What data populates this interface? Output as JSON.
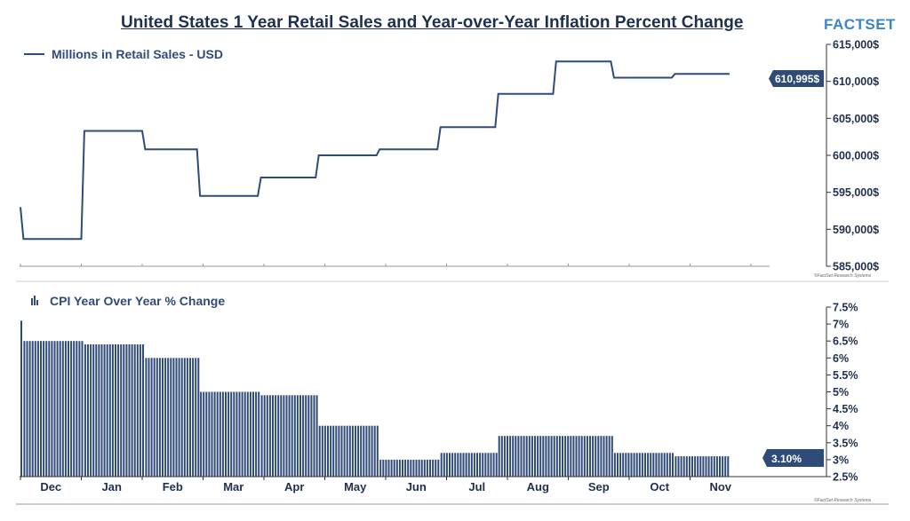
{
  "title": "United States 1 Year Retail Sales and Year-over-Year Inflation Percent Change",
  "brand": "FACTSET",
  "colors": {
    "series": "#2f4b78",
    "title": "#1f2f4e",
    "brand": "#3b86c8"
  },
  "copyright": "©FactSet Research Systems",
  "chart_data": [
    {
      "type": "line",
      "legend": "Millions in Retail Sales - USD",
      "legend_icon": "line-icon",
      "ylim": [
        585000,
        615000
      ],
      "y_ticks": [
        "585,000$",
        "590,000$",
        "595,000$",
        "600,000$",
        "605,000$",
        "610,000$",
        "615,000$"
      ],
      "last_value_label": "610,995$",
      "points": [
        {
          "x": 0.0,
          "y": 593000
        },
        {
          "x": 0.05,
          "y": 588700
        },
        {
          "x": 1.0,
          "y": 588700
        },
        {
          "x": 1.05,
          "y": 603300
        },
        {
          "x": 2.0,
          "y": 603300
        },
        {
          "x": 2.05,
          "y": 600800
        },
        {
          "x": 2.9,
          "y": 600800
        },
        {
          "x": 2.95,
          "y": 594500
        },
        {
          "x": 3.9,
          "y": 594500
        },
        {
          "x": 3.95,
          "y": 597000
        },
        {
          "x": 4.85,
          "y": 597000
        },
        {
          "x": 4.9,
          "y": 600000
        },
        {
          "x": 5.85,
          "y": 600000
        },
        {
          "x": 5.9,
          "y": 600800
        },
        {
          "x": 6.85,
          "y": 600800
        },
        {
          "x": 6.9,
          "y": 603800
        },
        {
          "x": 7.8,
          "y": 603800
        },
        {
          "x": 7.85,
          "y": 608300
        },
        {
          "x": 8.75,
          "y": 608300
        },
        {
          "x": 8.8,
          "y": 612700
        },
        {
          "x": 9.7,
          "y": 612700
        },
        {
          "x": 9.75,
          "y": 610500
        },
        {
          "x": 10.7,
          "y": 610500
        },
        {
          "x": 10.75,
          "y": 611000
        },
        {
          "x": 11.65,
          "y": 611000
        }
      ]
    },
    {
      "type": "bar",
      "legend": "CPI Year Over Year % Change",
      "legend_icon": "bar-chart-icon",
      "ylim": [
        2.5,
        7.5
      ],
      "y_ticks": [
        "2.5%",
        "3%",
        "3.5%",
        "4%",
        "4.5%",
        "5%",
        "5.5%",
        "6%",
        "6.5%",
        "7%",
        "7.5%"
      ],
      "last_value_label": "3.10%",
      "categories": [
        "Dec",
        "Jan",
        "Feb",
        "Mar",
        "Apr",
        "May",
        "Jun",
        "Jul",
        "Aug",
        "Sep",
        "Oct",
        "Nov"
      ],
      "segments": [
        {
          "from": 0.0,
          "to": 0.05,
          "value": 7.1
        },
        {
          "from": 0.05,
          "to": 1.05,
          "value": 6.5
        },
        {
          "from": 1.05,
          "to": 2.05,
          "value": 6.4
        },
        {
          "from": 2.05,
          "to": 2.95,
          "value": 6.0
        },
        {
          "from": 2.95,
          "to": 3.95,
          "value": 5.0
        },
        {
          "from": 3.95,
          "to": 4.9,
          "value": 4.9
        },
        {
          "from": 4.9,
          "to": 5.9,
          "value": 4.0
        },
        {
          "from": 5.9,
          "to": 6.9,
          "value": 3.0
        },
        {
          "from": 6.9,
          "to": 7.85,
          "value": 3.2
        },
        {
          "from": 7.85,
          "to": 9.75,
          "value": 3.7
        },
        {
          "from": 9.75,
          "to": 10.75,
          "value": 3.2
        },
        {
          "from": 10.75,
          "to": 11.65,
          "value": 3.1
        }
      ]
    }
  ]
}
